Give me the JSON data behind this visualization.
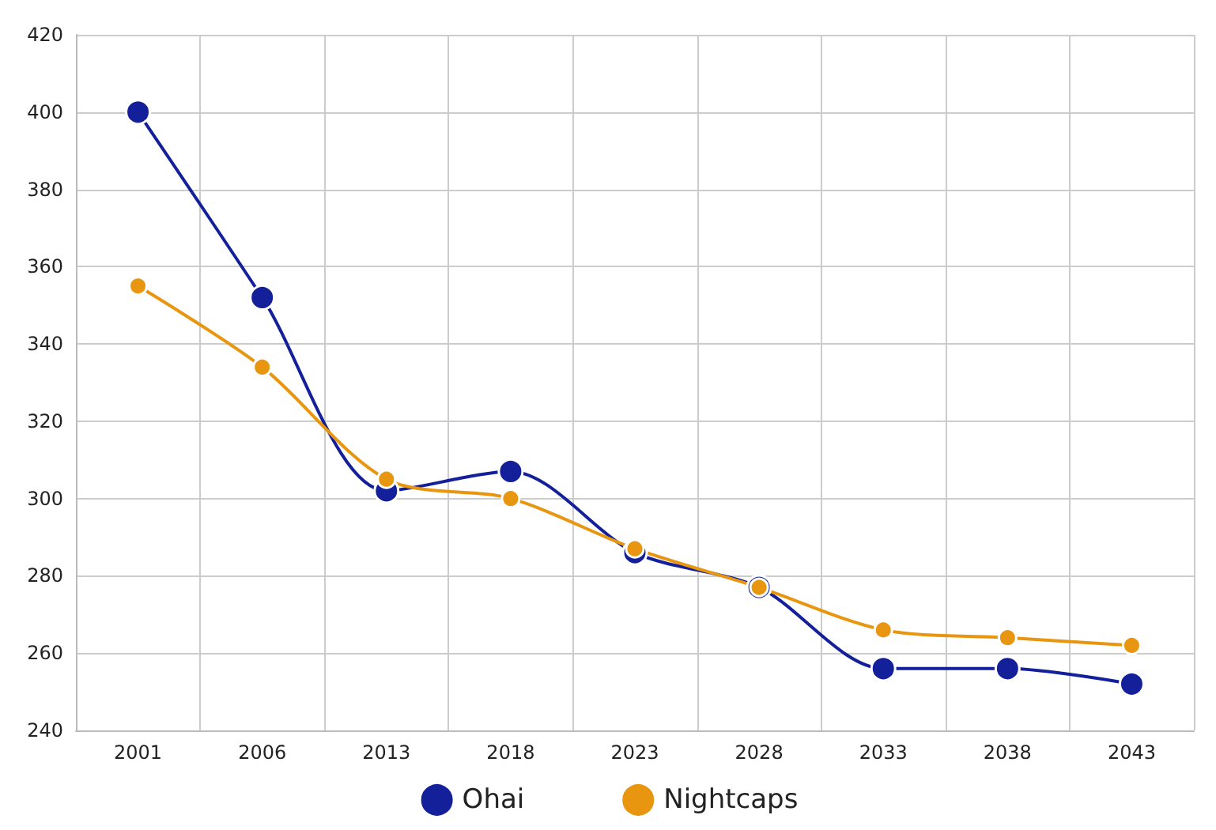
{
  "chart_data": {
    "type": "line",
    "categories": [
      "2001",
      "2006",
      "2013",
      "2018",
      "2023",
      "2028",
      "2033",
      "2038",
      "2043"
    ],
    "series": [
      {
        "name": "Ohai",
        "color": "#14209a",
        "values": [
          400,
          352,
          302,
          307,
          286,
          277,
          256,
          256,
          252
        ]
      },
      {
        "name": "Nightcaps",
        "color": "#e8950f",
        "values": [
          355,
          334,
          305,
          300,
          287,
          277,
          266,
          264,
          262
        ]
      }
    ],
    "ylim": [
      240,
      420
    ],
    "yticks": [
      240,
      260,
      280,
      300,
      320,
      340,
      360,
      380,
      400,
      420
    ],
    "grid": true,
    "legend": "bottom",
    "marker": "circle",
    "line_style": "solid"
  }
}
